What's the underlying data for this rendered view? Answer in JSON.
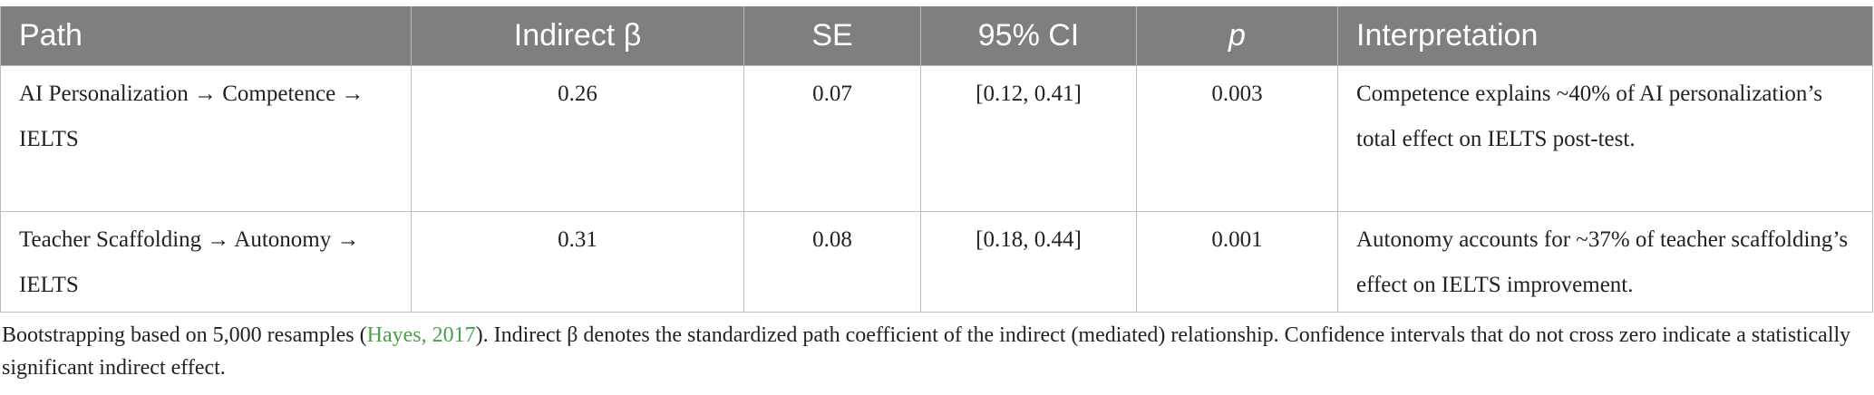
{
  "table": {
    "columns": [
      "Path",
      "Indirect β",
      "SE",
      "95% CI",
      "p",
      "Interpretation"
    ],
    "rows": [
      [
        "AI Personalization → Competence → IELTS",
        "0.26",
        "0.07",
        "[0.12, 0.41]",
        "0.003",
        "Competence explains ~40% of AI personalization’s total effect on IELTS post-test."
      ],
      [
        "Teacher Scaffolding → Autonomy → IELTS",
        "0.31",
        "0.08",
        "[0.18, 0.44]",
        "0.001",
        "Autonomy accounts for ~37% of teacher scaffolding’s effect on IELTS improvement."
      ]
    ]
  },
  "footnote": {
    "before": "Bootstrapping based on 5,000 resamples (",
    "citation": "Hayes, 2017",
    "after": "). Indirect β denotes the standardized path coefficient of the indirect (mediated) relationship. Confidence intervals that do not cross zero indicate a statistically significant indirect effect."
  }
}
